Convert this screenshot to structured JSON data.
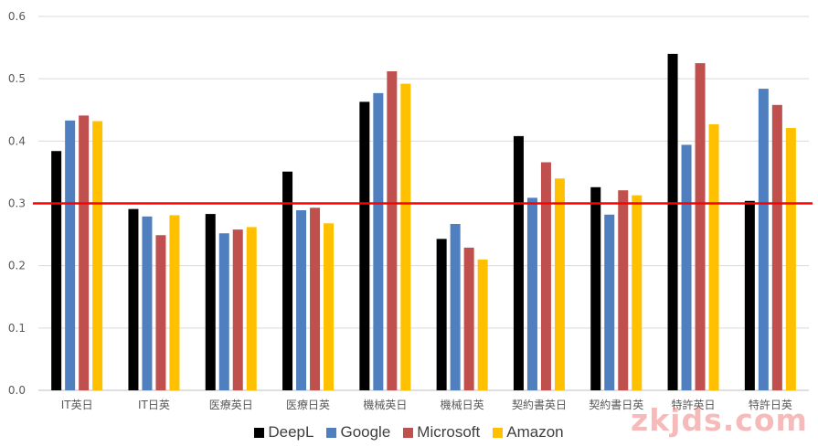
{
  "chart_data": {
    "type": "bar",
    "categories": [
      "IT英日",
      "IT日英",
      "医療英日",
      "医療日英",
      "機械英日",
      "機械日英",
      "契約書英日",
      "契約書日英",
      "特許英日",
      "特許日英"
    ],
    "series": [
      {
        "name": "DeepL",
        "color": "#000000",
        "values": [
          0.384,
          0.291,
          0.283,
          0.351,
          0.463,
          0.243,
          0.408,
          0.326,
          0.54,
          0.304
        ]
      },
      {
        "name": "Google",
        "color": "#4f7fbf",
        "values": [
          0.433,
          0.279,
          0.252,
          0.289,
          0.477,
          0.267,
          0.309,
          0.282,
          0.394,
          0.484
        ]
      },
      {
        "name": "Microsoft",
        "color": "#c0504d",
        "values": [
          0.441,
          0.249,
          0.258,
          0.293,
          0.512,
          0.229,
          0.366,
          0.321,
          0.525,
          0.458
        ]
      },
      {
        "name": "Amazon",
        "color": "#ffc000",
        "values": [
          0.432,
          0.281,
          0.262,
          0.268,
          0.492,
          0.21,
          0.34,
          0.313,
          0.427,
          0.421
        ]
      }
    ],
    "ylim": [
      0,
      0.6
    ],
    "yticks": [
      "0.0",
      "0.1",
      "0.2",
      "0.3",
      "0.4",
      "0.5",
      "0.6"
    ],
    "reference_line": {
      "value": 0.3,
      "color": "#ff0000"
    },
    "grid": true,
    "legend_position": "bottom"
  },
  "watermark": "zkjds.com"
}
